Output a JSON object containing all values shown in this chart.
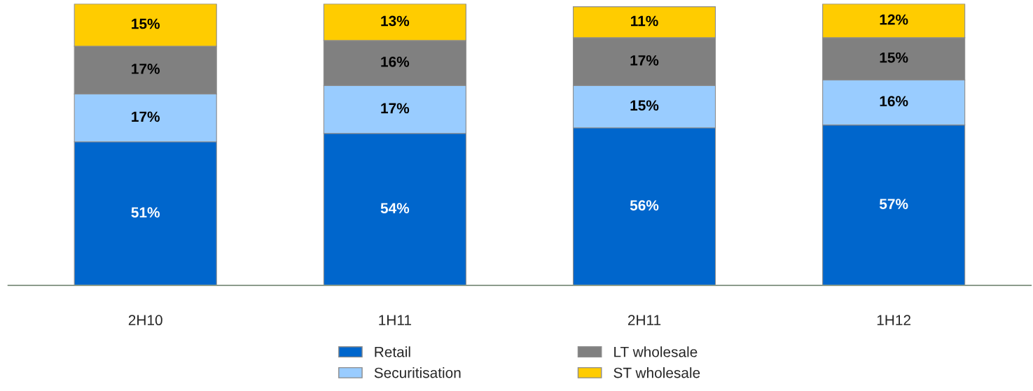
{
  "chart_data": {
    "type": "bar",
    "stacked": true,
    "legend": "bottom",
    "grid": false,
    "categories": [
      "2H10",
      "1H11",
      "2H11",
      "1H12"
    ],
    "series": [
      {
        "name": "Retail",
        "color": "#0066cc",
        "values": [
          51,
          54,
          56,
          57
        ],
        "value_labels": [
          "51%",
          "54%",
          "56%",
          "57%"
        ]
      },
      {
        "name": "Securitisation",
        "color": "#99ccff",
        "values": [
          17,
          17,
          15,
          16
        ],
        "value_labels": [
          "17%",
          "17%",
          "15%",
          "16%"
        ]
      },
      {
        "name": "LT wholesale",
        "color": "#808080",
        "values": [
          17,
          16,
          17,
          15
        ],
        "value_labels": [
          "17%",
          "16%",
          "17%",
          "15%"
        ]
      },
      {
        "name": "ST wholesale",
        "color": "#ffcc00",
        "values": [
          15,
          13,
          11,
          12
        ],
        "value_labels": [
          "15%",
          "13%",
          "11%",
          "12%"
        ]
      }
    ]
  }
}
